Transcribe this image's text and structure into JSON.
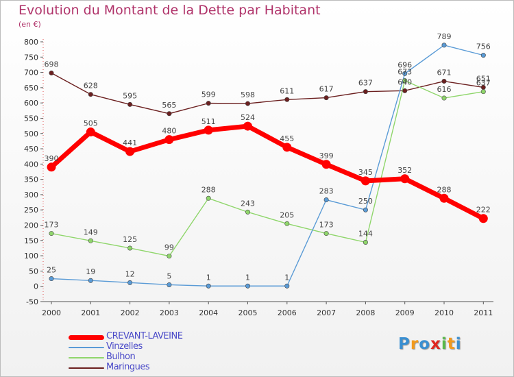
{
  "title": "Evolution du Montant de la Dette par Habitant",
  "unit_label": "(en €)",
  "chart_data": {
    "type": "line",
    "title": "Evolution du Montant de la Dette par Habitant",
    "ylabel": "(en €)",
    "xlabel": "",
    "categories": [
      "2000",
      "2001",
      "2002",
      "2003",
      "2004",
      "2005",
      "2006",
      "2007",
      "2008",
      "2009",
      "2010",
      "2011"
    ],
    "ylim": [
      -50,
      800
    ],
    "yticks": [
      -50,
      0,
      50,
      100,
      150,
      200,
      250,
      300,
      350,
      400,
      450,
      500,
      550,
      600,
      650,
      700,
      750,
      800
    ],
    "grid": false,
    "legend_position": "bottom-left",
    "series": [
      {
        "name": "Maringues",
        "color": "#6b1f1f",
        "values": [
          698,
          628,
          595,
          565,
          599,
          598,
          611,
          617,
          637,
          640,
          671,
          651
        ]
      },
      {
        "name": "Bulhon",
        "color": "#8fd66b",
        "values": [
          173,
          149,
          125,
          99,
          288,
          243,
          205,
          173,
          144,
          673,
          616,
          637
        ]
      },
      {
        "name": "Vinzelles",
        "color": "#5a9bd6",
        "values": [
          25,
          19,
          12,
          5,
          1,
          1,
          1,
          283,
          250,
          696,
          789,
          756
        ]
      },
      {
        "name": "CREVANT-LAVEINE",
        "color": "#ff0000",
        "values": [
          390,
          505,
          441,
          480,
          511,
          524,
          455,
          399,
          345,
          352,
          288,
          222
        ]
      }
    ]
  },
  "legend": [
    {
      "name": "CREVANT-LAVEINE",
      "color": "#ff0000"
    },
    {
      "name": "Vinzelles",
      "color": "#5a9bd6"
    },
    {
      "name": "Bulhon",
      "color": "#8fd66b"
    },
    {
      "name": "Maringues",
      "color": "#6b1f1f"
    }
  ],
  "logo": {
    "letters": [
      "P",
      "r",
      "o",
      "x",
      "i",
      "t",
      "i"
    ],
    "colors": [
      "#3a8fd1",
      "#f29a1e",
      "#3a8fd1",
      "#e0261f",
      "#58b94a",
      "#f29a1e",
      "#3a8fd1"
    ]
  }
}
